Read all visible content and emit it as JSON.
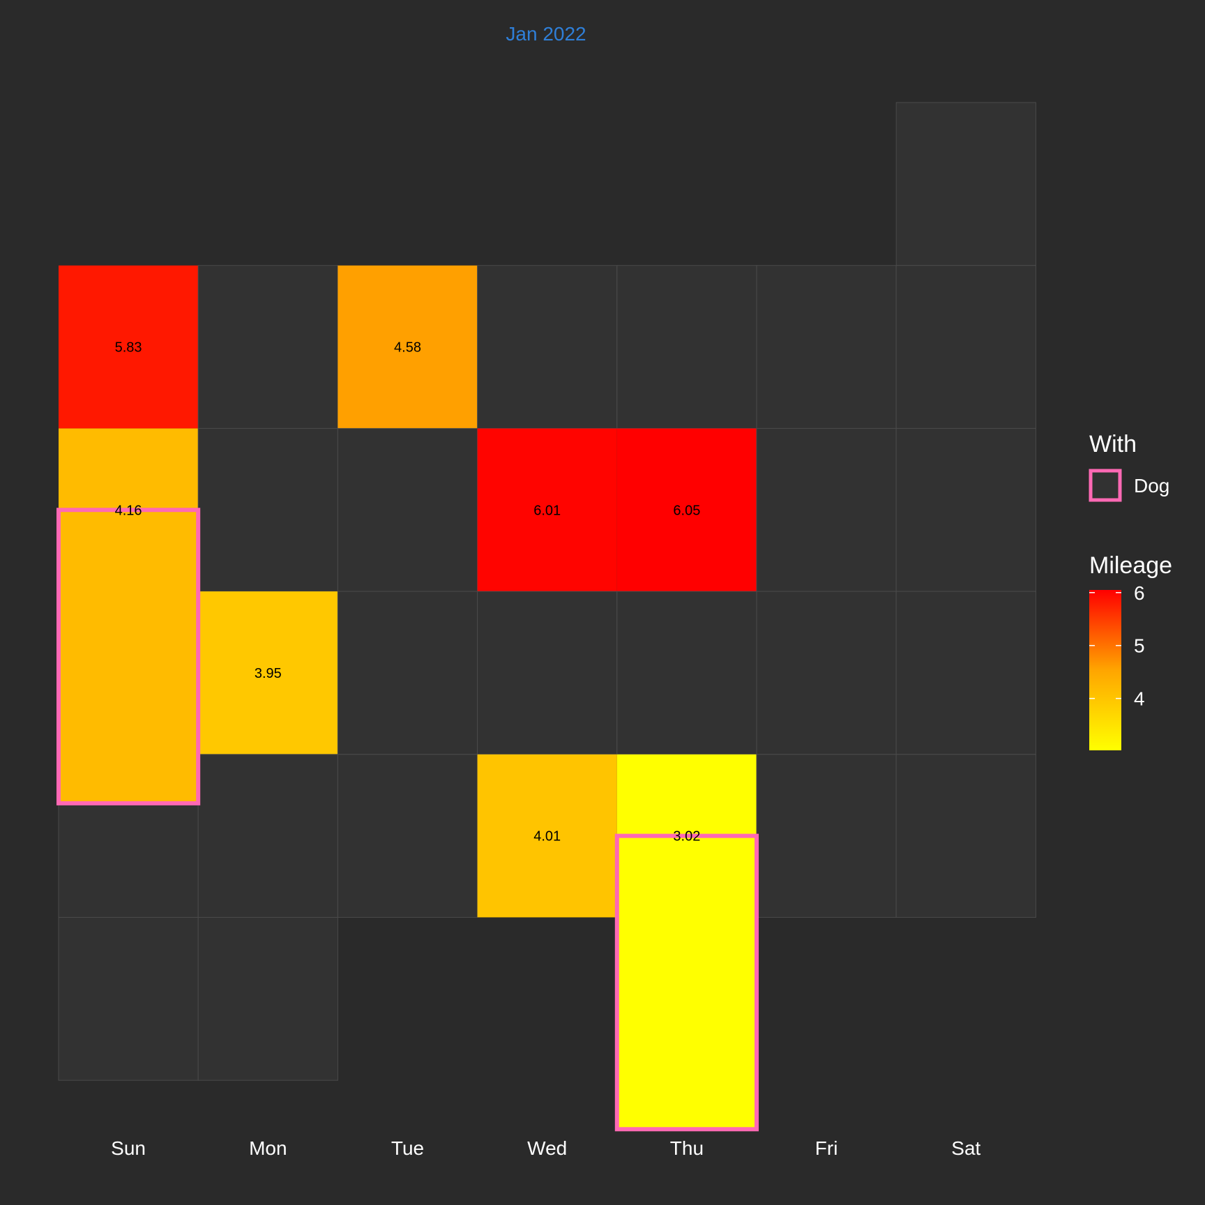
{
  "chart_data": {
    "type": "heatmap",
    "title": "Jan 2022",
    "weekdays": [
      "Sun",
      "Mon",
      "Tue",
      "Wed",
      "Thu",
      "Fri",
      "Sat"
    ],
    "month_start_weekday": 6,
    "days_in_month": 31,
    "runs": [
      {
        "day": 2,
        "mileage": 5.83,
        "with": null
      },
      {
        "day": 4,
        "mileage": 4.58,
        "with": null
      },
      {
        "day": 9,
        "mileage": 4.16,
        "with": "Dog"
      },
      {
        "day": 12,
        "mileage": 6.01,
        "with": null
      },
      {
        "day": 13,
        "mileage": 6.05,
        "with": null
      },
      {
        "day": 17,
        "mileage": 3.95,
        "with": null
      },
      {
        "day": 26,
        "mileage": 4.01,
        "with": null
      },
      {
        "day": 27,
        "mileage": 3.02,
        "with": "Dog"
      }
    ],
    "legend_with": {
      "title": "With",
      "entries": [
        "Dog"
      ]
    },
    "legend_mileage": {
      "title": "Mileage",
      "ticks": [
        4,
        5,
        6
      ],
      "range": [
        3.02,
        6.05
      ]
    },
    "colors": {
      "background": "#2a2a2a",
      "empty_cell": "#323232",
      "cell_border": "#4a4a4a",
      "low": "#ffff00",
      "mid": "#ffa500",
      "high": "#ff0000",
      "highlight_border": "#ff69b4",
      "title": "#2f7fd8"
    }
  }
}
